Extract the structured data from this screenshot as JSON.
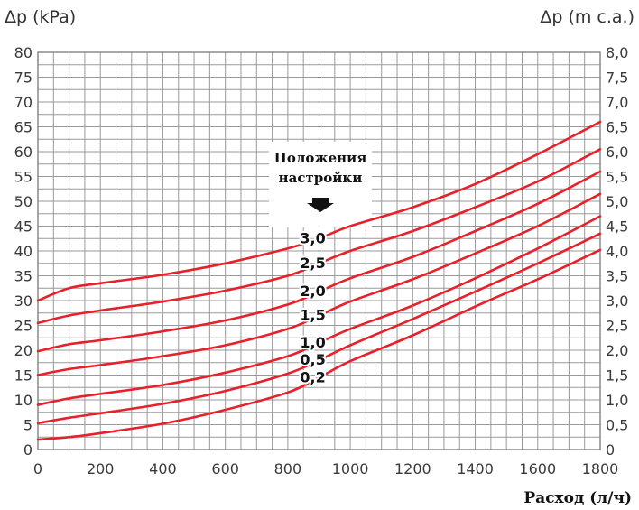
{
  "chart_data": {
    "type": "line",
    "ylabel_left": "Δp (kPa)",
    "ylabel_right": "Δp (m c.a.)",
    "xlabel": "Расход (л/ч)",
    "xlim": [
      0,
      1800
    ],
    "ylim": [
      0,
      80
    ],
    "xticks": [
      "0",
      "200",
      "400",
      "600",
      "800",
      "1000",
      "1200",
      "1400",
      "1600",
      "1800"
    ],
    "yticks_left": [
      "0",
      "5",
      "10",
      "15",
      "20",
      "25",
      "30",
      "35",
      "40",
      "45",
      "50",
      "55",
      "60",
      "65",
      "70",
      "75",
      "80"
    ],
    "yticks_right": [
      "0",
      "0,5",
      "1,0",
      "1,5",
      "2,0",
      "2,5",
      "3,0",
      "3,5",
      "4,0",
      "4,5",
      "5,0",
      "5,5",
      "6,0",
      "6,5",
      "7,0",
      "7,5",
      "8,0"
    ],
    "grid": true,
    "line_color": "#e8202a",
    "settings_header": [
      "Положения",
      "настройки"
    ],
    "series": [
      {
        "name": "3,0",
        "x": [
          0,
          100,
          200,
          400,
          600,
          800,
          900,
          1000,
          1200,
          1400,
          1600,
          1800
        ],
        "y": [
          30,
          32.5,
          33.5,
          35.2,
          37.5,
          40.5,
          42.5,
          45,
          48.8,
          53.5,
          59.5,
          66
        ]
      },
      {
        "name": "2,5",
        "x": [
          0,
          100,
          200,
          400,
          600,
          800,
          900,
          1000,
          1200,
          1400,
          1600,
          1800
        ],
        "y": [
          25.5,
          27,
          28,
          29.8,
          32,
          35,
          37.5,
          40,
          44,
          48.8,
          54,
          60.5
        ]
      },
      {
        "name": "2,0",
        "x": [
          0,
          100,
          200,
          400,
          600,
          800,
          900,
          1000,
          1200,
          1400,
          1600,
          1800
        ],
        "y": [
          19.8,
          21.2,
          22,
          23.8,
          26,
          29.2,
          31.8,
          34.5,
          38.8,
          44,
          49.5,
          56
        ]
      },
      {
        "name": "1,5",
        "x": [
          0,
          100,
          200,
          400,
          600,
          800,
          900,
          1000,
          1200,
          1400,
          1600,
          1800
        ],
        "y": [
          15,
          16.2,
          17,
          18.8,
          21,
          24.3,
          27,
          29.8,
          34.3,
          39.5,
          45,
          51.5
        ]
      },
      {
        "name": "1,0",
        "x": [
          0,
          100,
          200,
          400,
          600,
          800,
          900,
          1000,
          1200,
          1400,
          1600,
          1800
        ],
        "y": [
          9,
          10.3,
          11.2,
          13,
          15.5,
          18.8,
          21.5,
          24.3,
          29,
          34.5,
          40.5,
          47
        ]
      },
      {
        "name": "0,5",
        "x": [
          0,
          100,
          200,
          400,
          600,
          800,
          900,
          1000,
          1200,
          1400,
          1600,
          1800
        ],
        "y": [
          5.3,
          6.4,
          7.3,
          9.2,
          11.8,
          15.3,
          18,
          21,
          26.3,
          31.8,
          37.5,
          43.5
        ]
      },
      {
        "name": "0,2",
        "x": [
          0,
          100,
          200,
          400,
          600,
          800,
          900,
          1000,
          1200,
          1400,
          1600,
          1800
        ],
        "y": [
          2,
          2.5,
          3.3,
          5.2,
          8,
          11.5,
          14.5,
          17.8,
          23,
          28.8,
          34.3,
          40.2
        ]
      }
    ]
  }
}
